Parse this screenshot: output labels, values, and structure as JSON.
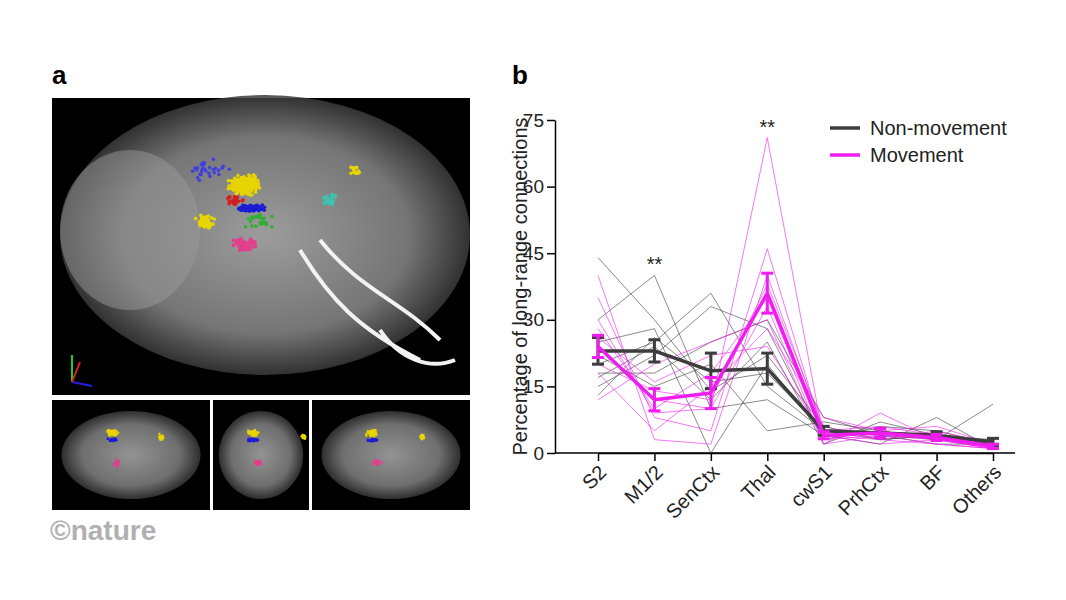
{
  "panel_labels": [
    "a",
    "b"
  ],
  "watermark": "©nature",
  "chart_data": {
    "type": "line",
    "y_label": "Percentage of long-range connections",
    "categories": [
      "S2",
      "M1/2",
      "SenCtx",
      "Thal",
      "cwS1",
      "PrhCtx",
      "BF",
      "Others"
    ],
    "ylim": [
      0,
      75
    ],
    "yticks": [
      0,
      15,
      30,
      45,
      60,
      75
    ],
    "grid": false,
    "legend": "upper right",
    "series": [
      {
        "name": "Non-movement",
        "color": "#3d3d3d",
        "values": [
          23,
          23,
          18.5,
          19,
          5,
          4.5,
          4,
          2.5
        ],
        "errors": [
          3,
          2.5,
          4,
          3.5,
          1,
          1,
          0.8,
          0.8
        ],
        "individual": [
          [
            44,
            30,
            14,
            22,
            6,
            3,
            4,
            3
          ],
          [
            30,
            40,
            10,
            12,
            4,
            5,
            3,
            11
          ],
          [
            20,
            25,
            36,
            15,
            5,
            3,
            4,
            2
          ],
          [
            15,
            22,
            33,
            28,
            3,
            6,
            5,
            2
          ],
          [
            18,
            18,
            25,
            30,
            8,
            4,
            3,
            2
          ],
          [
            25,
            28,
            0,
            20,
            4,
            2,
            8,
            1
          ],
          [
            22,
            15,
            20,
            5,
            7,
            5,
            3,
            3
          ],
          [
            17,
            24,
            12,
            25,
            2,
            7,
            4,
            2
          ],
          [
            13,
            26,
            16,
            18,
            5,
            4,
            2,
            2
          ]
        ]
      },
      {
        "name": "Movement",
        "color": "#f01df0",
        "values": [
          24,
          12,
          13.5,
          36,
          4,
          4.5,
          3.5,
          1.5
        ],
        "errors": [
          2.5,
          2.5,
          3.5,
          4.5,
          0.8,
          1,
          0.7,
          0.5
        ],
        "individual": [
          [
            24,
            12,
            10,
            71,
            3,
            5,
            3,
            1
          ],
          [
            35,
            8,
            5,
            46,
            4,
            3,
            2,
            1
          ],
          [
            40,
            3,
            2,
            40,
            5,
            6,
            4,
            2
          ],
          [
            12,
            20,
            25,
            30,
            2,
            9,
            3,
            1
          ],
          [
            20,
            14,
            12,
            38,
            6,
            3,
            5,
            2
          ],
          [
            28,
            10,
            18,
            35,
            3,
            4,
            3,
            1
          ],
          [
            18,
            5,
            15,
            28,
            8,
            5,
            6,
            2
          ],
          [
            26,
            16,
            22,
            24,
            4,
            2,
            3,
            2
          ],
          [
            30,
            9,
            10,
            33,
            2,
            4,
            2,
            1
          ]
        ]
      }
    ],
    "annotations": [
      {
        "text": "**",
        "category": "M1/2"
      },
      {
        "text": "**",
        "category": "Thal"
      }
    ]
  }
}
